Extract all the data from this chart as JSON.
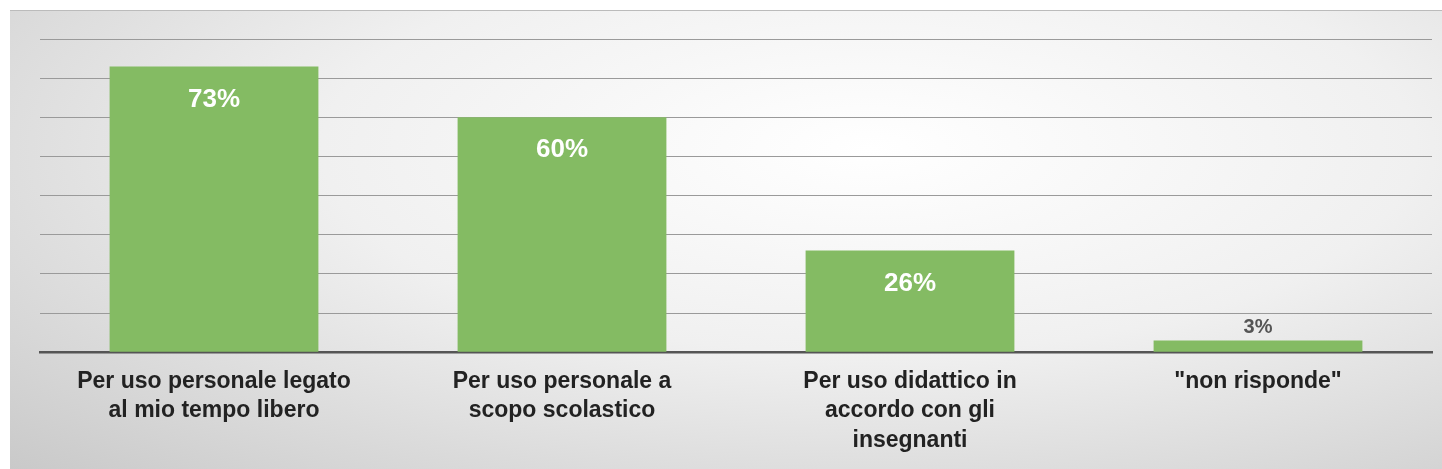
{
  "chart_data": {
    "type": "bar",
    "categories": [
      "Per uso personale legato al mio tempo libero",
      "Per uso personale a scopo scolastico",
      "Per uso didattico in accordo con gli insegnanti",
      "\"non risponde\""
    ],
    "values": [
      73,
      60,
      26,
      3
    ],
    "color": "#84bb63",
    "value_labels": [
      "73%",
      "60%",
      "26%",
      "3%"
    ],
    "grid": "y",
    "tick_labels": "x",
    "legend": false
  }
}
